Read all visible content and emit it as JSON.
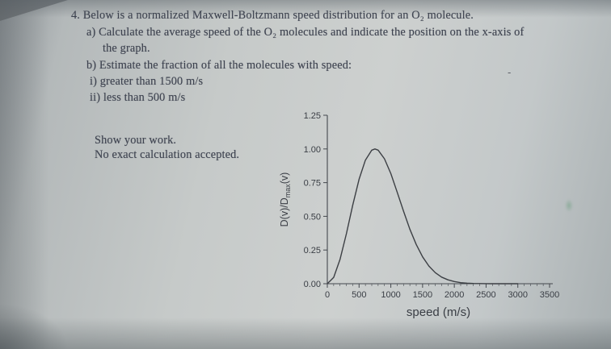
{
  "document": {
    "lines": {
      "intro": "4. Below is a normalized Maxwell-Boltzmann speed distribution for an O₂ molecule.",
      "part_a1": "a) Calculate the average speed of the O₂ molecules and indicate the position on the x-axis of",
      "part_a2": "the graph.",
      "part_b": "b) Estimate the fraction of all the molecules with speed:",
      "part_b_i": "i) greater than 1500 m/s",
      "part_b_ii": "ii) less than 500 m/s",
      "note1": "Show your work.",
      "note2": "No exact calculation accepted."
    },
    "stray_mark": "-"
  },
  "chart_data": {
    "type": "line",
    "title": "",
    "xlabel": "speed (m/s)",
    "ylabel": "D(v)/Dmax(v)",
    "ylabel_parts": {
      "main": "D(v)/D",
      "sub": "max",
      "tail": "(v)"
    },
    "xlim": [
      0,
      3500
    ],
    "ylim": [
      0,
      1.25
    ],
    "x_ticks": [
      0,
      500,
      1000,
      1500,
      2000,
      2500,
      3000,
      3500
    ],
    "x_minor_step": 100,
    "y_ticks": [
      "0.00",
      "0.25",
      "0.50",
      "0.75",
      "1.00",
      "1.25"
    ],
    "grid": false,
    "legend": "none",
    "series": [
      {
        "name": "normalized Maxwell-Boltzmann distribution for O2",
        "peak_speed_mps": 750,
        "x": [
          0,
          100,
          200,
          300,
          400,
          500,
          600,
          700,
          750,
          800,
          900,
          1000,
          1100,
          1200,
          1300,
          1400,
          1500,
          1600,
          1700,
          1800,
          1900,
          2000,
          2100,
          2200,
          2300,
          2400,
          2500,
          2600,
          2800,
          3000
        ],
        "y": [
          0,
          0.047,
          0.18,
          0.371,
          0.582,
          0.775,
          0.917,
          0.991,
          1.0,
          0.991,
          0.927,
          0.817,
          0.68,
          0.538,
          0.405,
          0.291,
          0.199,
          0.131,
          0.082,
          0.049,
          0.029,
          0.016,
          0.008,
          0.004,
          0.002,
          0.001,
          0.0005,
          0,
          0,
          0
        ]
      }
    ]
  }
}
